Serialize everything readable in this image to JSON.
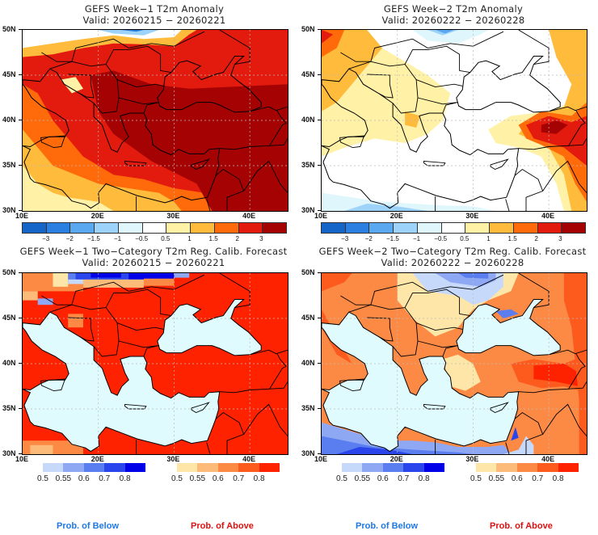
{
  "chart_data": [
    {
      "type": "heatmap",
      "title": "GEFS Week−1 T2m Anomaly",
      "subtitle": "Valid: 20260215 − 20260221",
      "xticks": [
        "10E",
        "20E",
        "30E",
        "40E"
      ],
      "yticks": [
        "50N",
        "45N",
        "40N",
        "35N",
        "30N"
      ],
      "colorbar": {
        "labels": [
          "−3",
          "−2",
          "−1.5",
          "−1",
          "−0.5",
          "0.5",
          "1",
          "1.5",
          "2",
          "3"
        ],
        "colors": [
          "#1565c8",
          "#2a7fe0",
          "#5aa8ef",
          "#9dd2fa",
          "#dff6fd",
          "#ffffff",
          "#fff2a6",
          "#ffbb3c",
          "#ff6a0a",
          "#e31b0e",
          "#a50303"
        ]
      },
      "summary": "Warm anomalies dominate; strongest (>3) over Turkey, Greece, Black Sea region; slight cool anomaly over Poland/Ukraine border at north edge"
    },
    {
      "type": "heatmap",
      "title": "GEFS Week−2 T2m Anomaly",
      "subtitle": "Valid: 20260222 − 20260228",
      "xticks": [
        "10E",
        "20E",
        "30E",
        "40E"
      ],
      "yticks": [
        "50N",
        "45N",
        "40N",
        "35N",
        "30N"
      ],
      "colorbar": {
        "labels": [
          "−3",
          "−2",
          "−1.5",
          "−1",
          "−0.5",
          "0.5",
          "1",
          "1.5",
          "2",
          "3"
        ],
        "colors": [
          "#1565c8",
          "#2a7fe0",
          "#5aa8ef",
          "#9dd2fa",
          "#dff6fd",
          "#ffffff",
          "#fff2a6",
          "#ffbb3c",
          "#ff6a0a",
          "#e31b0e",
          "#a50303"
        ]
      },
      "summary": "Near-normal over much of region; warm anomaly over eastern Turkey (up to 3) and Italy; weak cool anomalies north and over Libya/Egypt"
    },
    {
      "type": "heatmap",
      "title": "GEFS Week−1 Two−Category T2m Reg. Calib. Forecast",
      "subtitle": "Valid: 20260215 − 20260221",
      "xticks": [
        "10E",
        "20E",
        "30E",
        "40E"
      ],
      "yticks": [
        "50N",
        "45N",
        "40N",
        "35N",
        "30N"
      ],
      "below_colorbar": {
        "labels": [
          "0.5",
          "0.55",
          "0.6",
          "0.7",
          "0.8"
        ],
        "colors": [
          "#c6d9fb",
          "#8fa8f4",
          "#5a7ef0",
          "#2a45ec",
          "#0000e8"
        ],
        "legend": "Prob. of Below"
      },
      "above_colorbar": {
        "labels": [
          "0.5",
          "0.55",
          "0.6",
          "0.7",
          "0.8"
        ],
        "colors": [
          "#fde6a8",
          "#fdbb7a",
          "#fc8a45",
          "#fd5a1e",
          "#fe2200"
        ],
        "legend": "Prob. of Above"
      },
      "summary": "Probability of above >0.8 over nearly all land; below-normal probability in far north (Poland/Ukraine)"
    },
    {
      "type": "heatmap",
      "title": "GEFS Week−2 Two−Category T2m Reg. Calib. Forecast",
      "subtitle": "Valid: 20260222 − 20260228",
      "xticks": [
        "10E",
        "20E",
        "30E",
        "40E"
      ],
      "yticks": [
        "50N",
        "45N",
        "40N",
        "35N",
        "30N"
      ],
      "below_colorbar": {
        "labels": [
          "0.5",
          "0.55",
          "0.6",
          "0.7",
          "0.8"
        ],
        "colors": [
          "#c6d9fb",
          "#8fa8f4",
          "#5a7ef0",
          "#2a45ec",
          "#0000e8"
        ],
        "legend": "Prob. of Below"
      },
      "above_colorbar": {
        "labels": [
          "0.5",
          "0.55",
          "0.6",
          "0.7",
          "0.8"
        ],
        "colors": [
          "#fde6a8",
          "#fdbb7a",
          "#fc8a45",
          "#fd5a1e",
          "#fe2200"
        ],
        "legend": "Prob. of Above"
      },
      "summary": "Above-normal over Italy, Balkans, Turkey (strongest eastern Turkey); below-normal over Ukraine/Romania north and Libya/Egypt"
    }
  ],
  "colors": {
    "sea": "#e0fbfd",
    "coast": "#000000",
    "below_footer": "#1e78e6",
    "above_footer": "#e01010"
  }
}
